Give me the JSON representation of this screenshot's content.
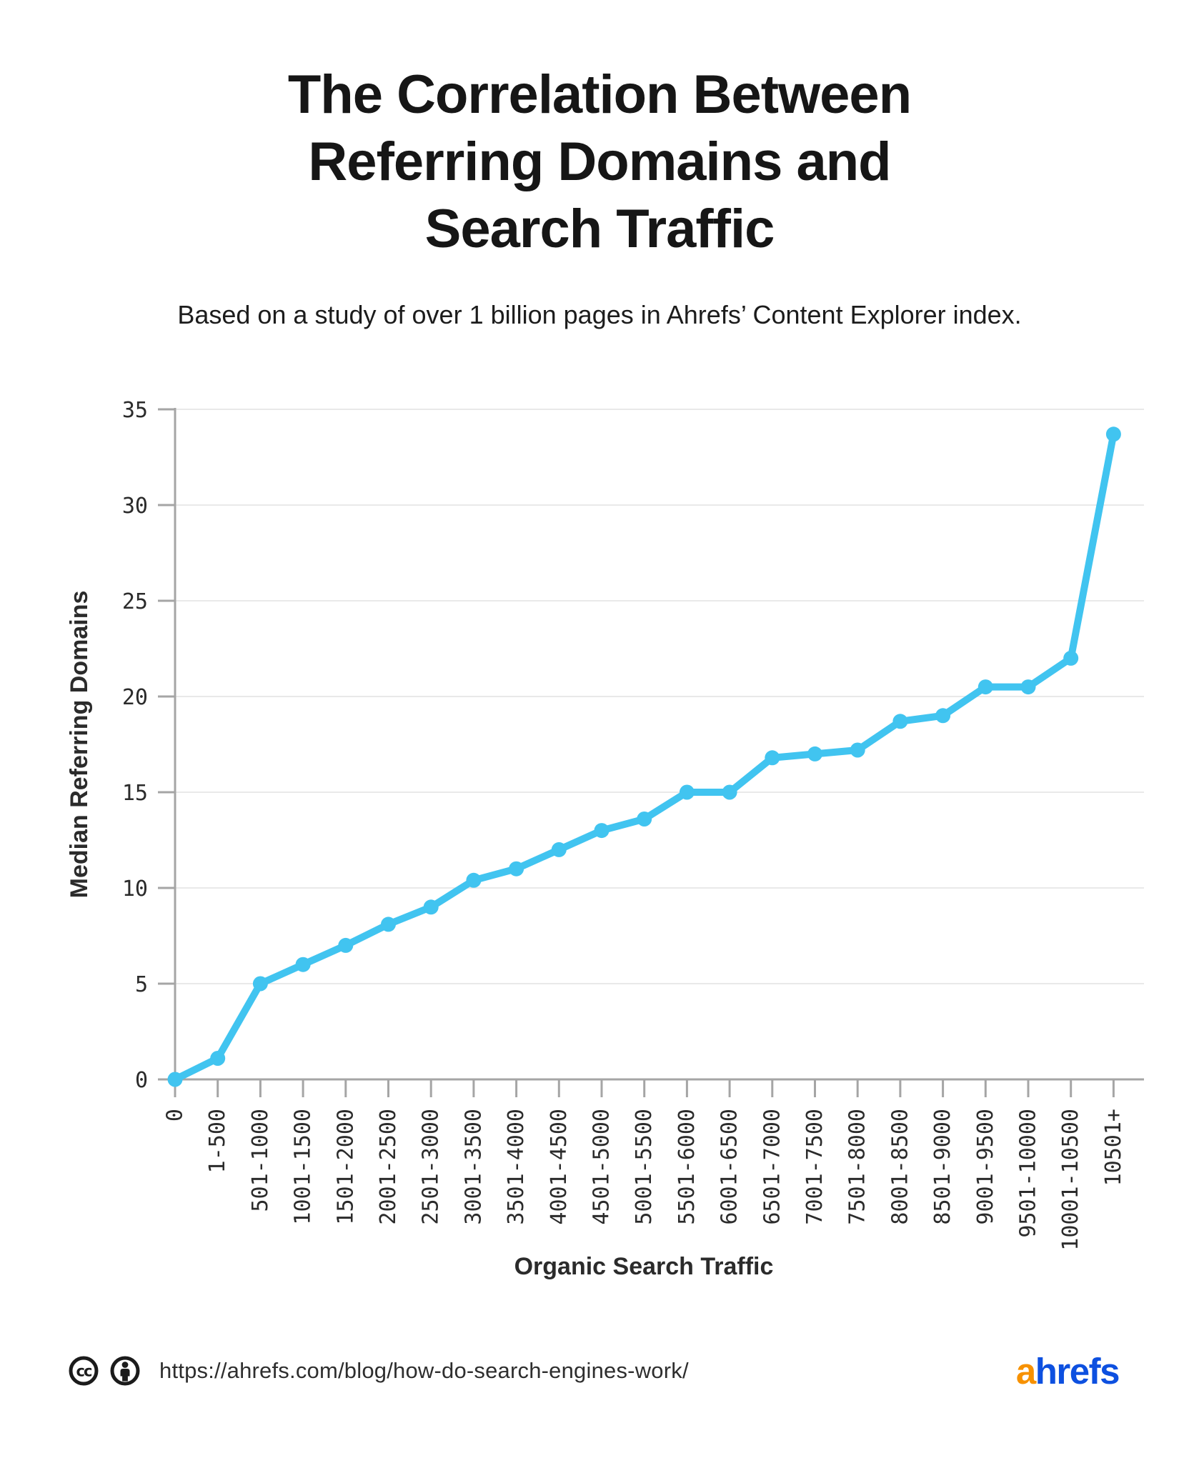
{
  "header": {
    "title_lines": [
      "The Correlation Between",
      "Referring Domains and",
      "Search Traffic"
    ],
    "subtitle": "Based on a study of over 1 billion pages in Ahrefs’ Content Explorer index."
  },
  "chart_data": {
    "type": "line",
    "title": "The Correlation Between Referring Domains and Search Traffic",
    "subtitle": "Based on a study of over 1 billion pages in Ahrefs’ Content Explorer index.",
    "categories": [
      "0",
      "1-500",
      "501-1000",
      "1001-1500",
      "1501-2000",
      "2001-2500",
      "2501-3000",
      "3001-3500",
      "3501-4000",
      "4001-4500",
      "4501-5000",
      "5001-5500",
      "5501-6000",
      "6001-6500",
      "6501-7000",
      "7001-7500",
      "7501-8000",
      "8001-8500",
      "8501-9000",
      "9001-9500",
      "9501-10000",
      "10001-10500",
      "10501+"
    ],
    "values": [
      0,
      1.1,
      5,
      6,
      7,
      8.1,
      9,
      10.4,
      11,
      12,
      13,
      13.6,
      15,
      15,
      16.8,
      17,
      17.2,
      18.7,
      19,
      20.5,
      20.5,
      22,
      33.7
    ],
    "xlabel": "Organic Search Traffic",
    "ylabel": "Median Referring Domains",
    "ylim": [
      0,
      35
    ],
    "ytick_step": 5,
    "grid": "horizontal",
    "legend": "none",
    "colors": {
      "line": "#41C4F0",
      "grid": "#E9E9E9",
      "axis": "#A5A5A5",
      "tick_text": "#2b2b2b",
      "title_text": "#1a1a1a"
    }
  },
  "footer": {
    "icons": [
      "cc-license-icon",
      "cc-attribution-icon"
    ],
    "url": "https://ahrefs.com/blog/how-do-search-engines-work/",
    "logo": {
      "prefix": "a",
      "suffix": "hrefs",
      "prefix_color": "#F79100",
      "suffix_color": "#0D50E0"
    }
  }
}
